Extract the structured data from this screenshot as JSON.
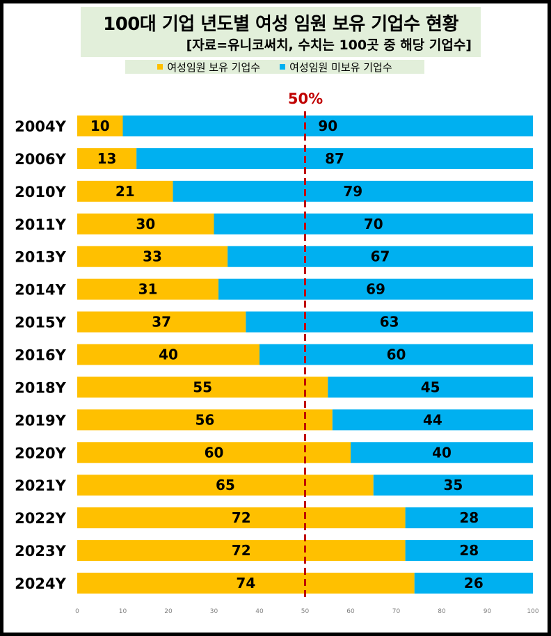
{
  "title": "100대 기업 년도별 여성 임원 보유 기업수 현황",
  "subtitle": "[자료=유니코써치, 수치는 100곳 중 해당 기업수]",
  "reference_label": "50%",
  "colors": {
    "with_female_exec": "#ffc000",
    "without_female_exec": "#00b0f0",
    "reference_line": "#c00000"
  },
  "chart_data": {
    "type": "bar",
    "orientation": "horizontal",
    "stacked": true,
    "categories": [
      "2004Y",
      "2006Y",
      "2010Y",
      "2011Y",
      "2013Y",
      "2014Y",
      "2015Y",
      "2016Y",
      "2018Y",
      "2019Y",
      "2020Y",
      "2021Y",
      "2022Y",
      "2023Y",
      "2024Y"
    ],
    "series": [
      {
        "name": "여성임원 보유 기업수",
        "values": [
          10,
          13,
          21,
          30,
          33,
          31,
          37,
          40,
          55,
          56,
          60,
          65,
          72,
          72,
          74
        ]
      },
      {
        "name": "여성임원 미보유 기업수",
        "values": [
          90,
          87,
          79,
          70,
          67,
          69,
          63,
          60,
          45,
          44,
          40,
          35,
          28,
          28,
          26
        ]
      }
    ],
    "xlim": [
      0,
      100
    ],
    "xticks": [
      0,
      10,
      20,
      30,
      40,
      50,
      60,
      70,
      80,
      90,
      100
    ],
    "reference_line": 50,
    "legend_position": "top",
    "grid": false
  }
}
